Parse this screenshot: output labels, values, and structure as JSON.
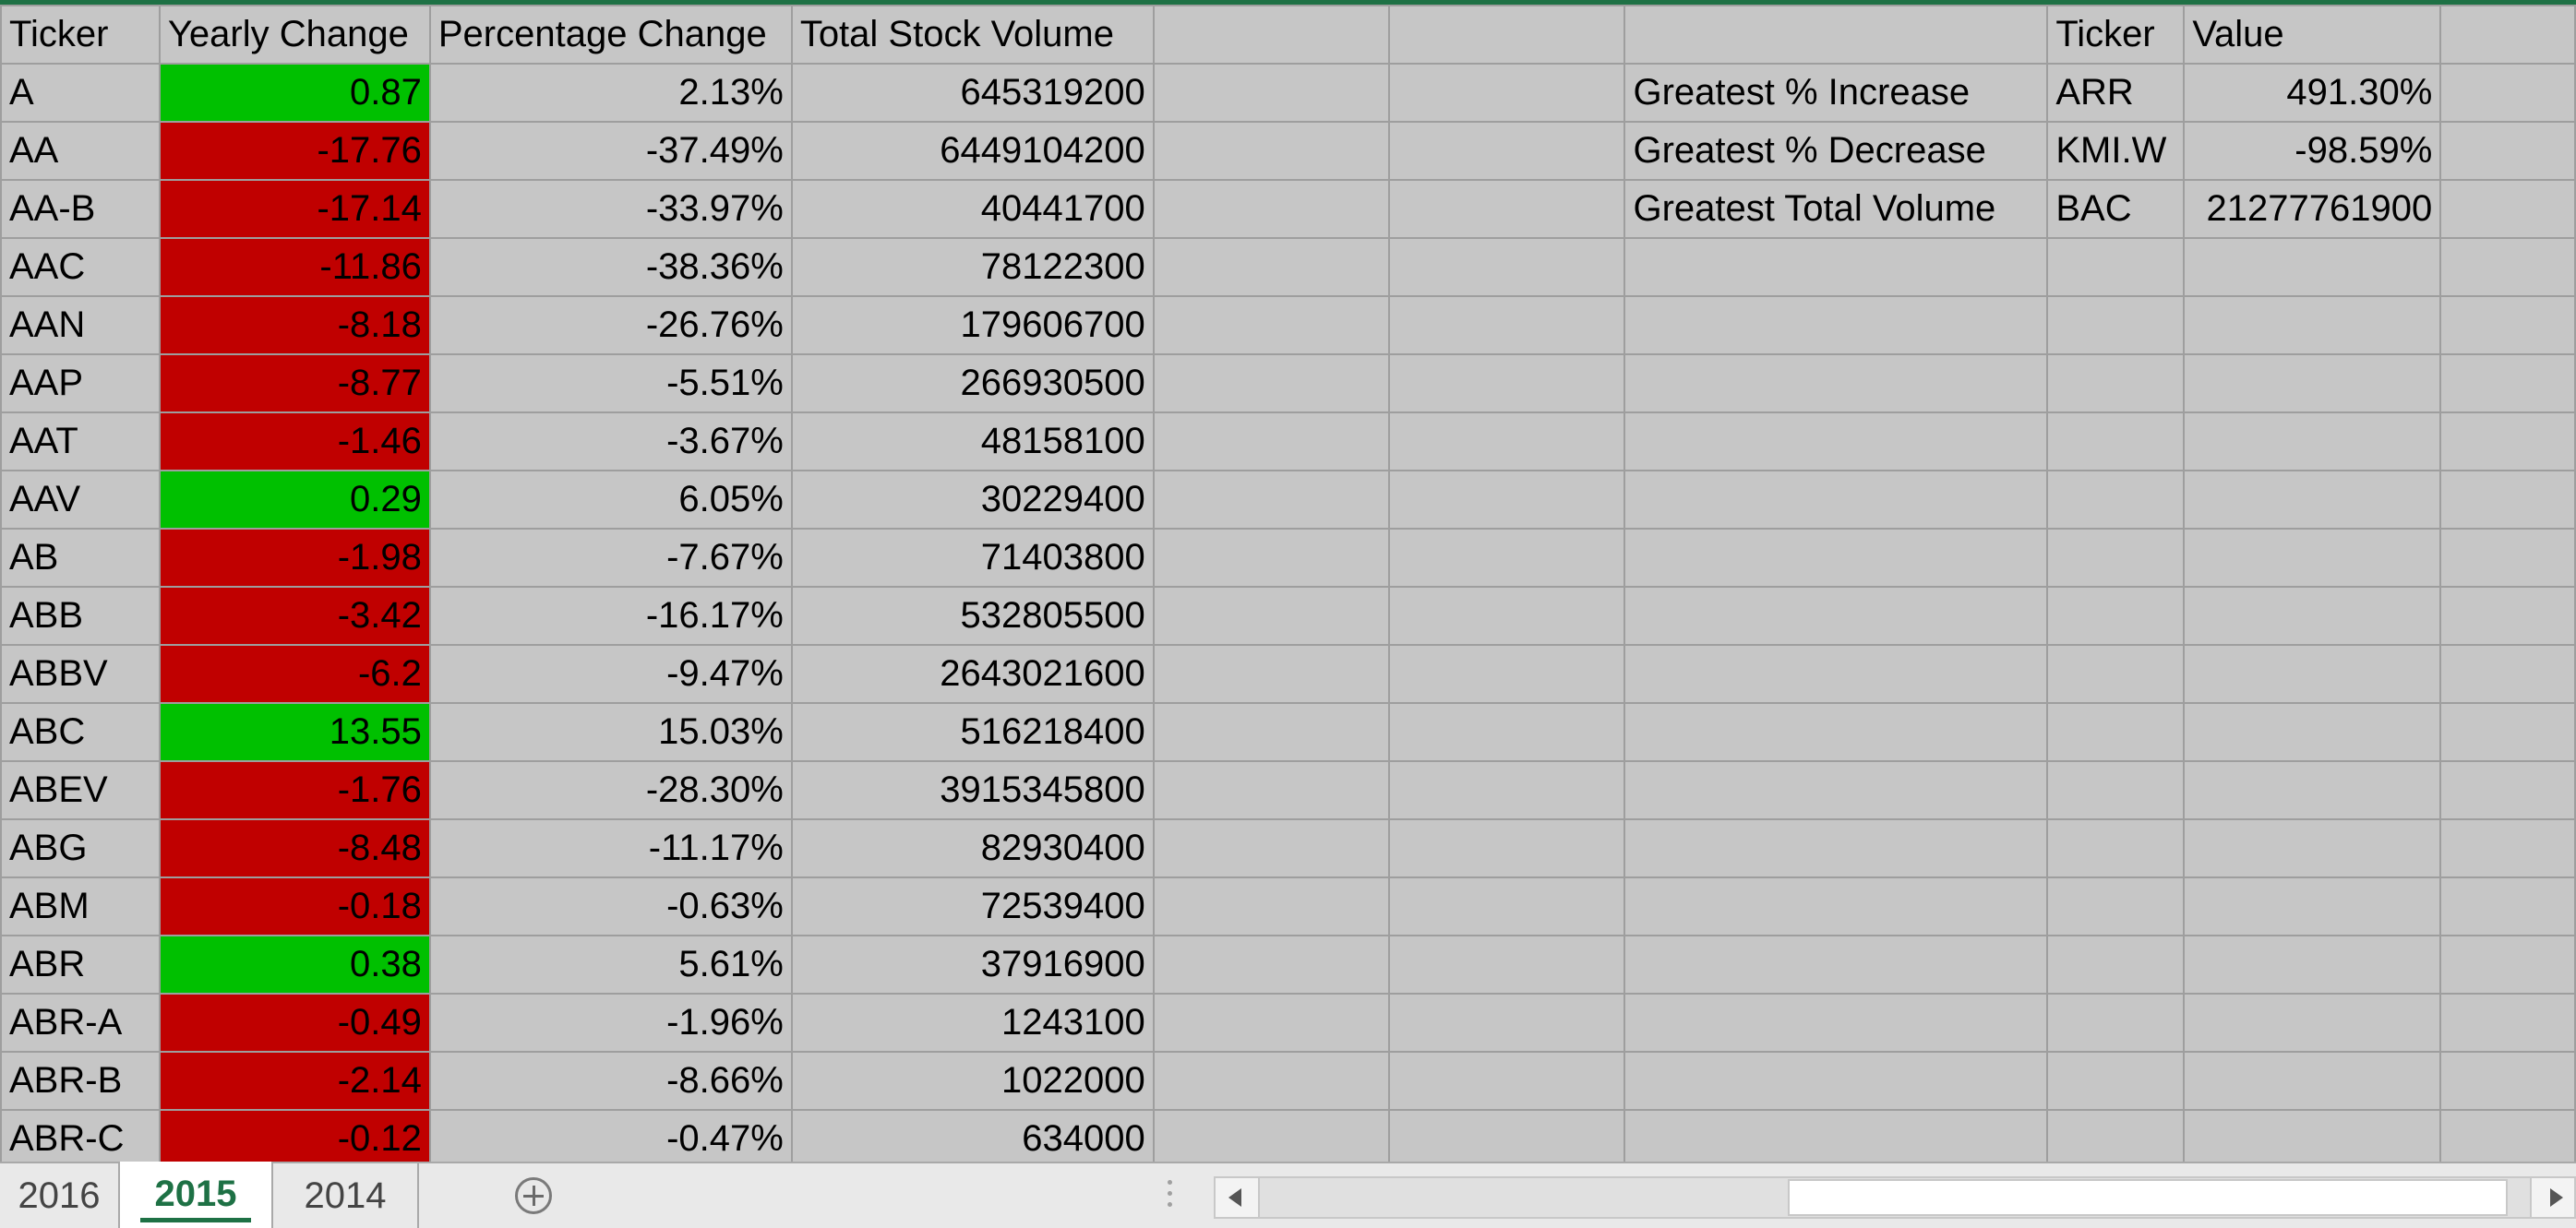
{
  "headers": {
    "ticker": "Ticker",
    "yearly_change": "Yearly Change",
    "percentage_change": "Percentage Change",
    "total_stock_volume": "Total Stock Volume",
    "summary_ticker": "Ticker",
    "summary_value": "Value"
  },
  "summary": [
    {
      "label": "Greatest % Increase",
      "ticker": "ARR",
      "value": "491.30%"
    },
    {
      "label": "Greatest % Decrease",
      "ticker": "KMI.W",
      "value": "-98.59%"
    },
    {
      "label": "Greatest Total Volume",
      "ticker": "BAC",
      "value": "21277761900"
    }
  ],
  "rows": [
    {
      "ticker": "A",
      "change": "0.87",
      "pct": "2.13%",
      "volume": "645319200"
    },
    {
      "ticker": "AA",
      "change": "-17.76",
      "pct": "-37.49%",
      "volume": "6449104200"
    },
    {
      "ticker": "AA-B",
      "change": "-17.14",
      "pct": "-33.97%",
      "volume": "40441700"
    },
    {
      "ticker": "AAC",
      "change": "-11.86",
      "pct": "-38.36%",
      "volume": "78122300"
    },
    {
      "ticker": "AAN",
      "change": "-8.18",
      "pct": "-26.76%",
      "volume": "179606700"
    },
    {
      "ticker": "AAP",
      "change": "-8.77",
      "pct": "-5.51%",
      "volume": "266930500"
    },
    {
      "ticker": "AAT",
      "change": "-1.46",
      "pct": "-3.67%",
      "volume": "48158100"
    },
    {
      "ticker": "AAV",
      "change": "0.29",
      "pct": "6.05%",
      "volume": "30229400"
    },
    {
      "ticker": "AB",
      "change": "-1.98",
      "pct": "-7.67%",
      "volume": "71403800"
    },
    {
      "ticker": "ABB",
      "change": "-3.42",
      "pct": "-16.17%",
      "volume": "532805500"
    },
    {
      "ticker": "ABBV",
      "change": "-6.2",
      "pct": "-9.47%",
      "volume": "2643021600"
    },
    {
      "ticker": "ABC",
      "change": "13.55",
      "pct": "15.03%",
      "volume": "516218400"
    },
    {
      "ticker": "ABEV",
      "change": "-1.76",
      "pct": "-28.30%",
      "volume": "3915345800"
    },
    {
      "ticker": "ABG",
      "change": "-8.48",
      "pct": "-11.17%",
      "volume": "82930400"
    },
    {
      "ticker": "ABM",
      "change": "-0.18",
      "pct": "-0.63%",
      "volume": "72539400"
    },
    {
      "ticker": "ABR",
      "change": "0.38",
      "pct": "5.61%",
      "volume": "37916900"
    },
    {
      "ticker": "ABR-A",
      "change": "-0.49",
      "pct": "-1.96%",
      "volume": "1243100"
    },
    {
      "ticker": "ABR-B",
      "change": "-2.14",
      "pct": "-8.66%",
      "volume": "1022000"
    },
    {
      "ticker": "ABR-C",
      "change": "-0.12",
      "pct": "-0.47%",
      "volume": "634000"
    }
  ],
  "tabs": [
    {
      "label": "2016",
      "active": false
    },
    {
      "label": "2015",
      "active": true
    },
    {
      "label": "2014",
      "active": false
    }
  ],
  "colors": {
    "positive_fill": "#00c000",
    "negative_fill": "#c00000",
    "cell_background": "#c6c6c6",
    "active_tab_text": "#1e7145"
  },
  "icons": {
    "add_sheet": "plus-circle-icon",
    "scroll_left": "triangle-left-icon",
    "scroll_right": "triangle-right-icon"
  }
}
